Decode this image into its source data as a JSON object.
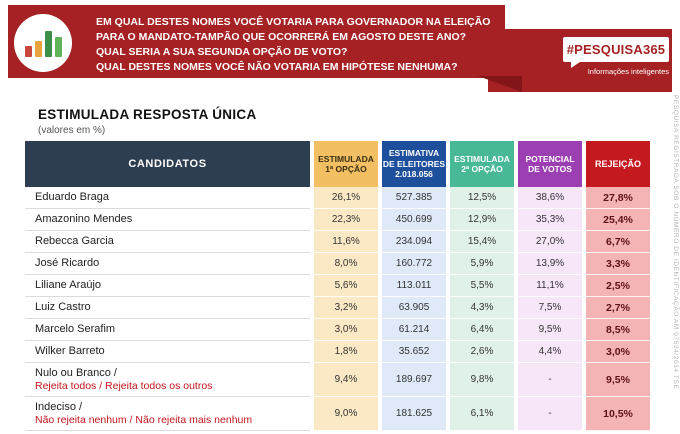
{
  "header": {
    "question_lines": [
      "EM QUAL DESTES NOMES VOCÊ VOTARIA PARA GOVERNADOR NA ELEIÇÃO",
      "PARA O MANDATO-TAMPÃO QUE OCORRERÁ EM AGOSTO DESTE ANO?",
      "QUAL SERIA A SUA SEGUNDA OPÇÃO DE VOTO?",
      "QUAL DESTES NOMES VOCÊ NÃO VOTARIA EM HIPÓTESE NENHUMA?"
    ],
    "brand_badge": "#PESQUISA365",
    "brand_tagline": "Informações inteligentes",
    "logo_icon": "bar-chart-icon"
  },
  "title": "ESTIMULADA RESPOSTA ÚNICA",
  "subtitle": "(valores em %)",
  "table": {
    "columns": [
      {
        "lines": [
          "CANDIDATOS"
        ]
      },
      {
        "lines": [
          "ESTIMULADA",
          "1ª OPÇÃO"
        ]
      },
      {
        "lines": [
          "ESTIMATIVA",
          "DE ELEITORES",
          "2.018.056"
        ]
      },
      {
        "lines": [
          "ESTIMULADA",
          "2ª OPÇÃO"
        ]
      },
      {
        "lines": [
          "POTENCIAL",
          "DE VOTOS"
        ]
      },
      {
        "lines": [
          "REJEIÇÃO"
        ]
      }
    ],
    "rows": [
      {
        "name": "Eduardo Braga",
        "values": [
          "26,1%",
          "527.385",
          "12,5%",
          "38,6%",
          "27,8%"
        ]
      },
      {
        "name": "Amazonino Mendes",
        "values": [
          "22,3%",
          "450.699",
          "12,9%",
          "35,3%",
          "25,4%"
        ]
      },
      {
        "name": "Rebecca Garcia",
        "values": [
          "11,6%",
          "234.094",
          "15,4%",
          "27,0%",
          "6,7%"
        ]
      },
      {
        "name": "José Ricardo",
        "values": [
          "8,0%",
          "160.772",
          "5,9%",
          "13,9%",
          "3,3%"
        ]
      },
      {
        "name": "Liliane Araújo",
        "values": [
          "5,6%",
          "113.011",
          "5,5%",
          "11,1%",
          "2,5%"
        ]
      },
      {
        "name": "Luiz Castro",
        "values": [
          "3,2%",
          "63.905",
          "4,3%",
          "7,5%",
          "2,7%"
        ]
      },
      {
        "name": "Marcelo Serafim",
        "values": [
          "3,0%",
          "61.214",
          "6,4%",
          "9,5%",
          "8,5%"
        ]
      },
      {
        "name": "Wilker Barreto",
        "values": [
          "1,8%",
          "35.652",
          "2,6%",
          "4,4%",
          "3,0%"
        ]
      },
      {
        "name": "Nulo ou Branco /",
        "name_sub": "Rejeita todos / Rejeita todos os outros",
        "values": [
          "9,4%",
          "189.697",
          "9,8%",
          "-",
          "9,5%"
        ]
      },
      {
        "name": "Indeciso /",
        "name_sub": "Não rejeita nenhum / Não rejeita mais nenhum",
        "values": [
          "9,0%",
          "181.625",
          "6,1%",
          "-",
          "10,5%"
        ]
      }
    ]
  },
  "side_note": "PESQUISA REGISTRADA SOB O NÚMERO DE IDENTIFICAÇÃO AM 07524/2014 TSE",
  "colors": {
    "banner_red": "#a62124",
    "fold_dark_red": "#821518",
    "header_navy": "#2d3e50",
    "col_amber": "#f2bf63",
    "col_blue": "#1e4f9c",
    "col_teal": "#48b897",
    "col_purple": "#9c3fb2",
    "col_red": "#c4191f",
    "tint_amber": "#fbe9c6",
    "tint_blue": "#dfe9f7",
    "tint_green": "#e0f2e7",
    "tint_purple": "#f7e5f8",
    "tint_red": "#f4b4b6",
    "rejection_text": "#5d1215",
    "red_label_text": "#c3161c"
  },
  "chart_data": {
    "type": "table",
    "title": "ESTIMULADA RESPOSTA ÚNICA (valores em %)",
    "columns": [
      "CANDIDATOS",
      "ESTIMULADA 1ª OPÇÃO",
      "ESTIMATIVA DE ELEITORES 2.018.056",
      "ESTIMULADA 2ª OPÇÃO",
      "POTENCIAL DE VOTOS",
      "REJEIÇÃO"
    ],
    "rows": [
      [
        "Eduardo Braga",
        26.1,
        527385,
        12.5,
        38.6,
        27.8
      ],
      [
        "Amazonino Mendes",
        22.3,
        450699,
        12.9,
        35.3,
        25.4
      ],
      [
        "Rebecca Garcia",
        11.6,
        234094,
        15.4,
        27.0,
        6.7
      ],
      [
        "José Ricardo",
        8.0,
        160772,
        5.9,
        13.9,
        3.3
      ],
      [
        "Liliane Araújo",
        5.6,
        113011,
        5.5,
        11.1,
        2.5
      ],
      [
        "Luiz Castro",
        3.2,
        63905,
        4.3,
        7.5,
        2.7
      ],
      [
        "Marcelo Serafim",
        3.0,
        61214,
        6.4,
        9.5,
        8.5
      ],
      [
        "Wilker Barreto",
        1.8,
        35652,
        2.6,
        4.4,
        3.0
      ],
      [
        "Nulo ou Branco / Rejeita todos / Rejeita todos os outros",
        9.4,
        189697,
        9.8,
        null,
        9.5
      ],
      [
        "Indeciso / Não rejeita nenhum / Não rejeita mais nenhum",
        9.0,
        181625,
        6.1,
        null,
        10.5
      ]
    ],
    "units": "%, eleitores em valores absolutos"
  }
}
